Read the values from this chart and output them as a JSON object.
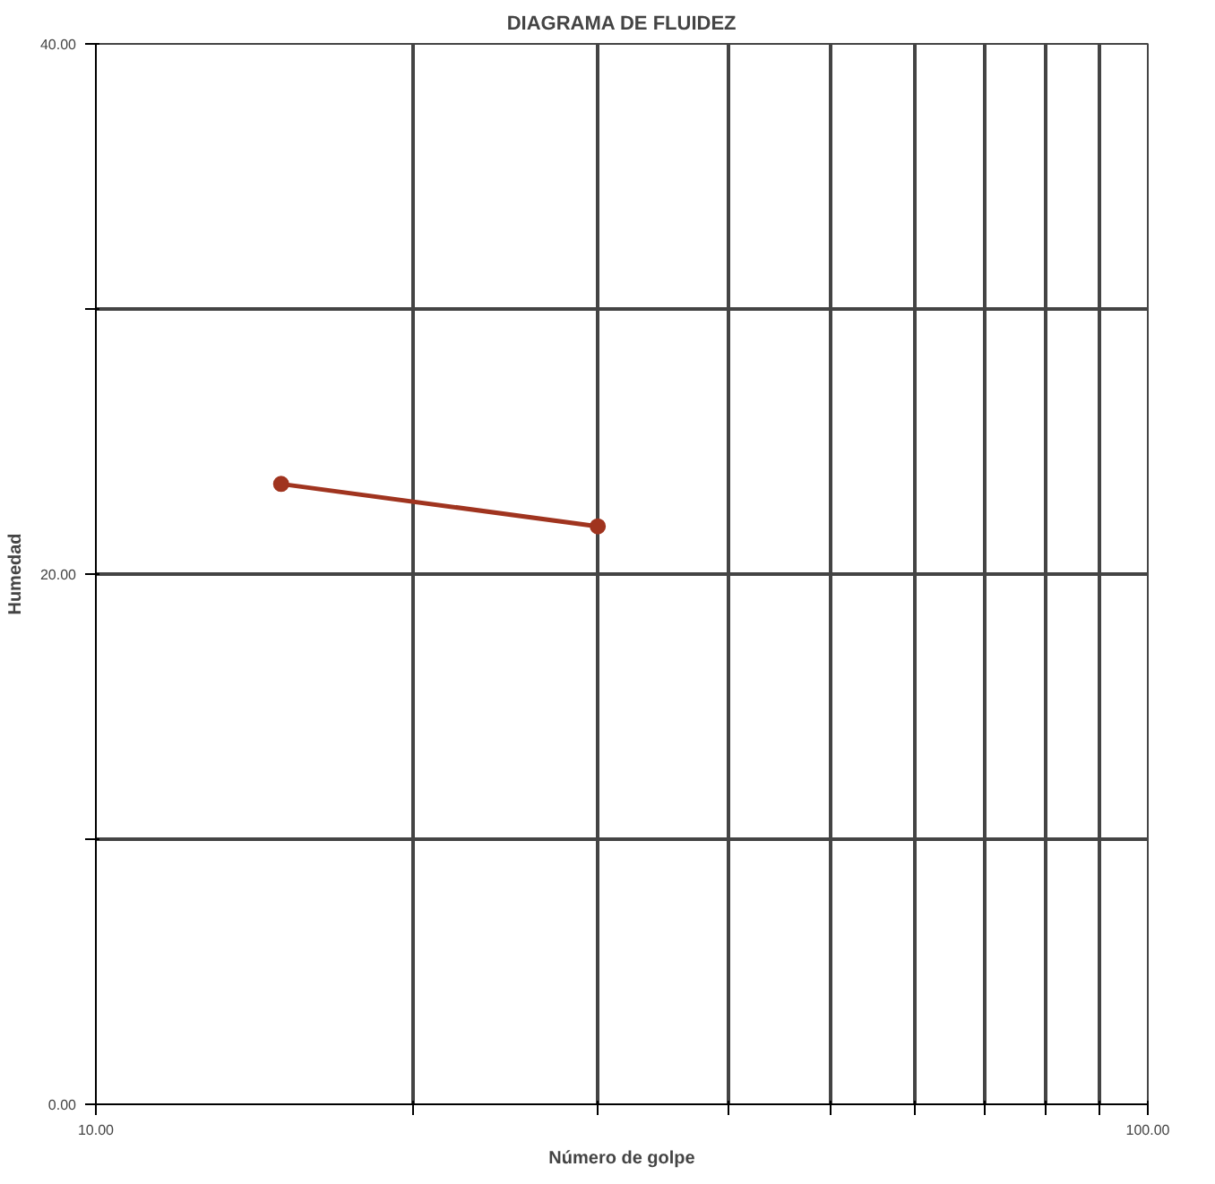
{
  "chart_data": {
    "type": "line",
    "title": "DIAGRAMA DE FLUIDEZ",
    "xlabel": "Número de golpe",
    "ylabel": "Humedad",
    "x": [
      15,
      30
    ],
    "series": [
      {
        "color": "#a0341f",
        "values": [
          23.4,
          21.8
        ]
      }
    ],
    "log": "x",
    "xlim": [
      10,
      100
    ],
    "xticks": [
      {
        "value": 10,
        "label": "10.00"
      },
      {
        "value": 20,
        "label": null
      },
      {
        "value": 30,
        "label": null
      },
      {
        "value": 40,
        "label": null
      },
      {
        "value": 50,
        "label": null
      },
      {
        "value": 60,
        "label": null
      },
      {
        "value": 70,
        "label": null
      },
      {
        "value": 80,
        "label": null
      },
      {
        "value": 90,
        "label": null
      },
      {
        "value": 100,
        "label": "100.00"
      }
    ],
    "ylim": [
      0,
      40
    ],
    "yticks": [
      {
        "value": 0,
        "label": "0.00"
      },
      {
        "value": 10,
        "label": null
      },
      {
        "value": 20,
        "label": "20.00"
      },
      {
        "value": 30,
        "label": null
      },
      {
        "value": 40,
        "label": "40.00"
      }
    ],
    "grid": true,
    "marker": "circle",
    "line_style": "solid"
  }
}
